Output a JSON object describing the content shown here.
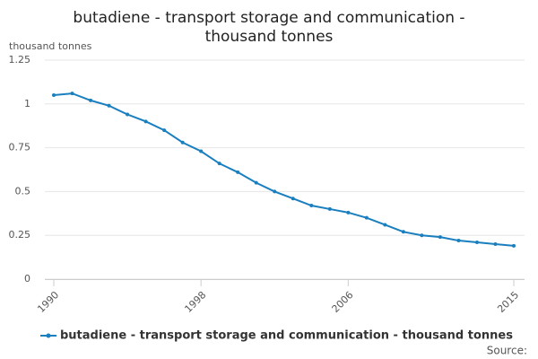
{
  "chart_data": {
    "type": "line",
    "title": "butadiene - transport storage and communication - thousand tonnes",
    "y_label": "thousand tonnes",
    "source": "Source:",
    "x": [
      1990,
      1991,
      1992,
      1993,
      1994,
      1995,
      1996,
      1997,
      1998,
      1999,
      2000,
      2001,
      2002,
      2003,
      2004,
      2005,
      2006,
      2007,
      2008,
      2009,
      2010,
      2011,
      2012,
      2013,
      2014,
      2015
    ],
    "series": [
      {
        "name": "butadiene - transport storage and communication - thousand tonnes",
        "color": "#1a7fbf",
        "values": [
          1.05,
          1.06,
          1.02,
          0.99,
          0.94,
          0.9,
          0.85,
          0.78,
          0.73,
          0.66,
          0.61,
          0.55,
          0.5,
          0.46,
          0.42,
          0.4,
          0.38,
          0.35,
          0.31,
          0.27,
          0.25,
          0.24,
          0.22,
          0.21,
          0.2,
          0.19
        ]
      }
    ],
    "xlim": [
      1990,
      2015
    ],
    "xticks": [
      1990,
      1998,
      2006,
      2015
    ],
    "ylim": [
      0,
      1.25
    ],
    "yticks": [
      0,
      0.25,
      0.5,
      0.75,
      1,
      1.25
    ],
    "grid": true
  }
}
